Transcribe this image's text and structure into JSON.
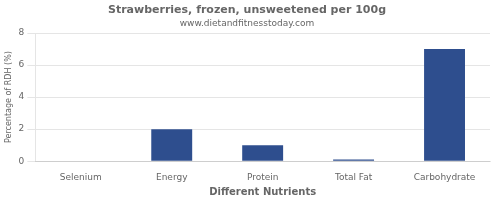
{
  "chart_data": {
    "type": "bar",
    "title": "Strawberries, frozen, unsweetened per 100g",
    "subtitle": "www.dietandfitnesstoday.com",
    "xlabel": "Different Nutrients",
    "ylabel": "Percentage of RDH (%)",
    "categories": [
      "Selenium",
      "Energy",
      "Protein",
      "Total Fat",
      "Carbohydrate"
    ],
    "values": [
      0.0,
      2.0,
      1.0,
      0.1,
      7.0
    ],
    "color": "#2e4e8e",
    "ylim": [
      0,
      8
    ],
    "yticks": [
      0,
      2,
      4,
      6,
      8
    ],
    "grid": true
  }
}
